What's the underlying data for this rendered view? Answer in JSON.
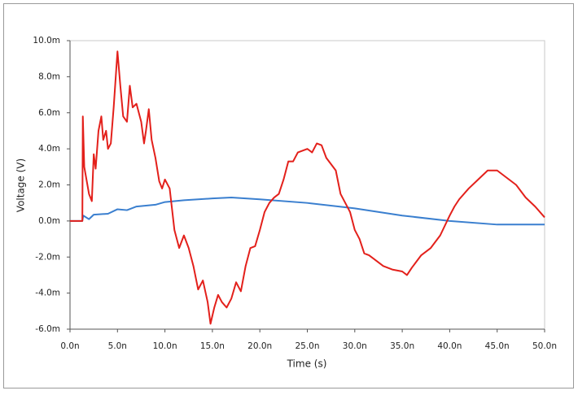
{
  "chart_data": {
    "type": "line",
    "xlabel": "Time (s)",
    "ylabel": "Voltage (V)",
    "xlim": [
      0,
      5e-08
    ],
    "ylim": [
      -0.006,
      0.01
    ],
    "xticks": [
      {
        "value": 0,
        "label": "0.0n"
      },
      {
        "value": 5e-09,
        "label": "5.0n"
      },
      {
        "value": 1e-08,
        "label": "10.0n"
      },
      {
        "value": 1.5e-08,
        "label": "15.0n"
      },
      {
        "value": 2e-08,
        "label": "20.0n"
      },
      {
        "value": 2.5e-08,
        "label": "25.0n"
      },
      {
        "value": 3e-08,
        "label": "30.0n"
      },
      {
        "value": 3.5e-08,
        "label": "35.0n"
      },
      {
        "value": 4e-08,
        "label": "40.0n"
      },
      {
        "value": 4.5e-08,
        "label": "45.0n"
      },
      {
        "value": 5e-08,
        "label": "50.0n"
      }
    ],
    "yticks": [
      {
        "value": -0.006,
        "label": "-6.0m"
      },
      {
        "value": -0.004,
        "label": "-4.0m"
      },
      {
        "value": -0.002,
        "label": "-2.0m"
      },
      {
        "value": 0,
        "label": "0.0m"
      },
      {
        "value": 0.002,
        "label": "2.0m"
      },
      {
        "value": 0.004,
        "label": "4.0m"
      },
      {
        "value": 0.006,
        "label": "6.0m"
      },
      {
        "value": 0.008,
        "label": "8.0m"
      },
      {
        "value": 0.01,
        "label": "10.0m"
      }
    ],
    "grid": false,
    "series": [
      {
        "color": "#e3201b",
        "x": [
          0,
          1.3e-09,
          1.35e-09,
          1.5e-09,
          2e-09,
          2.3e-09,
          2.5e-09,
          2.7e-09,
          3e-09,
          3.3e-09,
          3.5e-09,
          3.8e-09,
          4e-09,
          4.3e-09,
          4.6e-09,
          5e-09,
          5.3e-09,
          5.6e-09,
          6e-09,
          6.3e-09,
          6.6e-09,
          7e-09,
          7.5e-09,
          7.8e-09,
          8e-09,
          8.3e-09,
          8.6e-09,
          9e-09,
          9.4e-09,
          9.7e-09,
          1e-08,
          1.05e-08,
          1.1e-08,
          1.15e-08,
          1.2e-08,
          1.25e-08,
          1.3e-08,
          1.35e-08,
          1.4e-08,
          1.45e-08,
          1.48e-08,
          1.52e-08,
          1.56e-08,
          1.6e-08,
          1.65e-08,
          1.7e-08,
          1.75e-08,
          1.8e-08,
          1.85e-08,
          1.9e-08,
          1.95e-08,
          2e-08,
          2.05e-08,
          2.1e-08,
          2.15e-08,
          2.2e-08,
          2.25e-08,
          2.3e-08,
          2.35e-08,
          2.4e-08,
          2.5e-08,
          2.55e-08,
          2.6e-08,
          2.65e-08,
          2.7e-08,
          2.8e-08,
          2.85e-08,
          2.9e-08,
          2.95e-08,
          3e-08,
          3.05e-08,
          3.1e-08,
          3.15e-08,
          3.2e-08,
          3.3e-08,
          3.4e-08,
          3.5e-08,
          3.55e-08,
          3.6e-08,
          3.7e-08,
          3.8e-08,
          3.9e-08,
          4e-08,
          4.05e-08,
          4.1e-08,
          4.2e-08,
          4.3e-08,
          4.4e-08,
          4.5e-08,
          4.6e-08,
          4.7e-08,
          4.8e-08,
          4.9e-08,
          5e-08
        ],
        "values": [
          0,
          0,
          0.0058,
          0.003,
          0.0015,
          0.0011,
          0.0037,
          0.0029,
          0.005,
          0.0058,
          0.0045,
          0.005,
          0.004,
          0.0043,
          0.0063,
          0.0094,
          0.0075,
          0.0058,
          0.0055,
          0.0075,
          0.0063,
          0.0065,
          0.0055,
          0.0043,
          0.005,
          0.0062,
          0.0045,
          0.0035,
          0.0022,
          0.0018,
          0.0023,
          0.0018,
          -0.0005,
          -0.0015,
          -0.0008,
          -0.0015,
          -0.0025,
          -0.0038,
          -0.0033,
          -0.0045,
          -0.0057,
          -0.0048,
          -0.0041,
          -0.0045,
          -0.0048,
          -0.0043,
          -0.0034,
          -0.0039,
          -0.0025,
          -0.0015,
          -0.0014,
          -0.0005,
          0.0005,
          0.001,
          0.0013,
          0.0015,
          0.0023,
          0.0033,
          0.0033,
          0.0038,
          0.004,
          0.0038,
          0.0043,
          0.0042,
          0.0035,
          0.0028,
          0.0015,
          0.001,
          0.0005,
          -0.0005,
          -0.001,
          -0.0018,
          -0.0019,
          -0.0021,
          -0.0025,
          -0.0027,
          -0.0028,
          -0.003,
          -0.0026,
          -0.0019,
          -0.0015,
          -0.0008,
          0.0003,
          0.0008,
          0.0012,
          0.0018,
          0.0023,
          0.0028,
          0.0028,
          0.0024,
          0.002,
          0.0013,
          0.0008,
          0.0002
        ]
      },
      {
        "color": "#3a7fcf",
        "x": [
          0,
          1.3e-09,
          1.4e-09,
          2e-09,
          2.5e-09,
          4e-09,
          5e-09,
          6e-09,
          7e-09,
          9e-09,
          1e-08,
          1.2e-08,
          1.5e-08,
          1.7e-08,
          2e-08,
          2.5e-08,
          3e-08,
          3.5e-08,
          4e-08,
          4.5e-08,
          5e-08
        ],
        "values": [
          0,
          0,
          0.0003,
          0.0001,
          0.00035,
          0.0004,
          0.00065,
          0.0006,
          0.0008,
          0.0009,
          0.00105,
          0.00115,
          0.00125,
          0.0013,
          0.0012,
          0.001,
          0.0007,
          0.0003,
          0,
          -0.0002,
          -0.0002
        ]
      }
    ]
  }
}
